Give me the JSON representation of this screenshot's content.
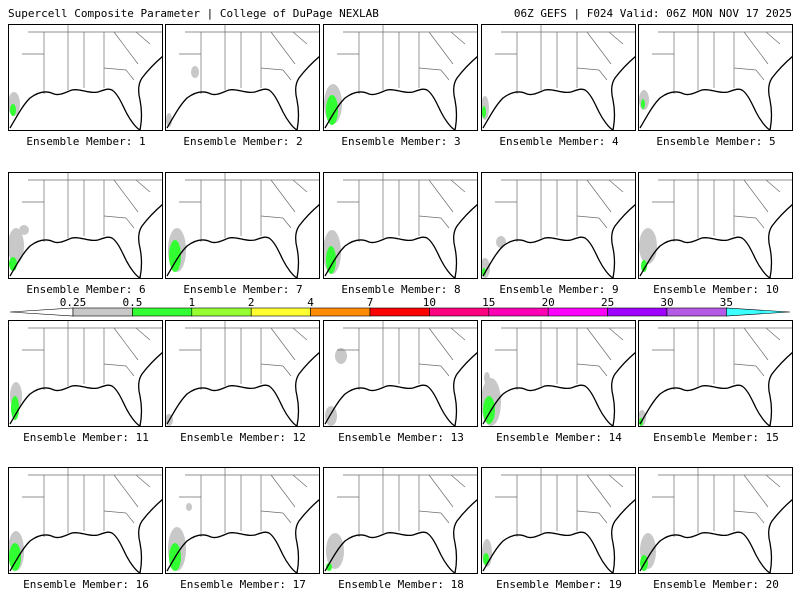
{
  "header": {
    "left_title": "Supercell Composite Parameter | College of DuPage NEXLAB",
    "right_title": "06Z GEFS | F024 Valid: 06Z MON NOV 17 2025"
  },
  "panels": [
    {
      "label": "Ensemble Member: 1"
    },
    {
      "label": "Ensemble Member: 2"
    },
    {
      "label": "Ensemble Member: 3"
    },
    {
      "label": "Ensemble Member: 4"
    },
    {
      "label": "Ensemble Member: 5"
    },
    {
      "label": "Ensemble Member: 6"
    },
    {
      "label": "Ensemble Member: 7"
    },
    {
      "label": "Ensemble Member: 8"
    },
    {
      "label": "Ensemble Member: 9"
    },
    {
      "label": "Ensemble Member: 10"
    },
    {
      "label": "Ensemble Member: 11"
    },
    {
      "label": "Ensemble Member: 12"
    },
    {
      "label": "Ensemble Member: 13"
    },
    {
      "label": "Ensemble Member: 14"
    },
    {
      "label": "Ensemble Member: 15"
    },
    {
      "label": "Ensemble Member: 16"
    },
    {
      "label": "Ensemble Member: 17"
    },
    {
      "label": "Ensemble Member: 18"
    },
    {
      "label": "Ensemble Member: 19"
    },
    {
      "label": "Ensemble Member: 20"
    }
  ],
  "legend": {
    "ticks": [
      "0.25",
      "0.5",
      "1",
      "2",
      "4",
      "7",
      "10",
      "15",
      "20",
      "25",
      "30",
      "35"
    ],
    "colors": [
      "#c8c8c8",
      "#32ff32",
      "#96ff32",
      "#ffff32",
      "#ff8c00",
      "#ff0000",
      "#ff0080",
      "#ff00b4",
      "#ff00ff",
      "#a000ff",
      "#b45ae6",
      "#3cffff"
    ]
  }
}
